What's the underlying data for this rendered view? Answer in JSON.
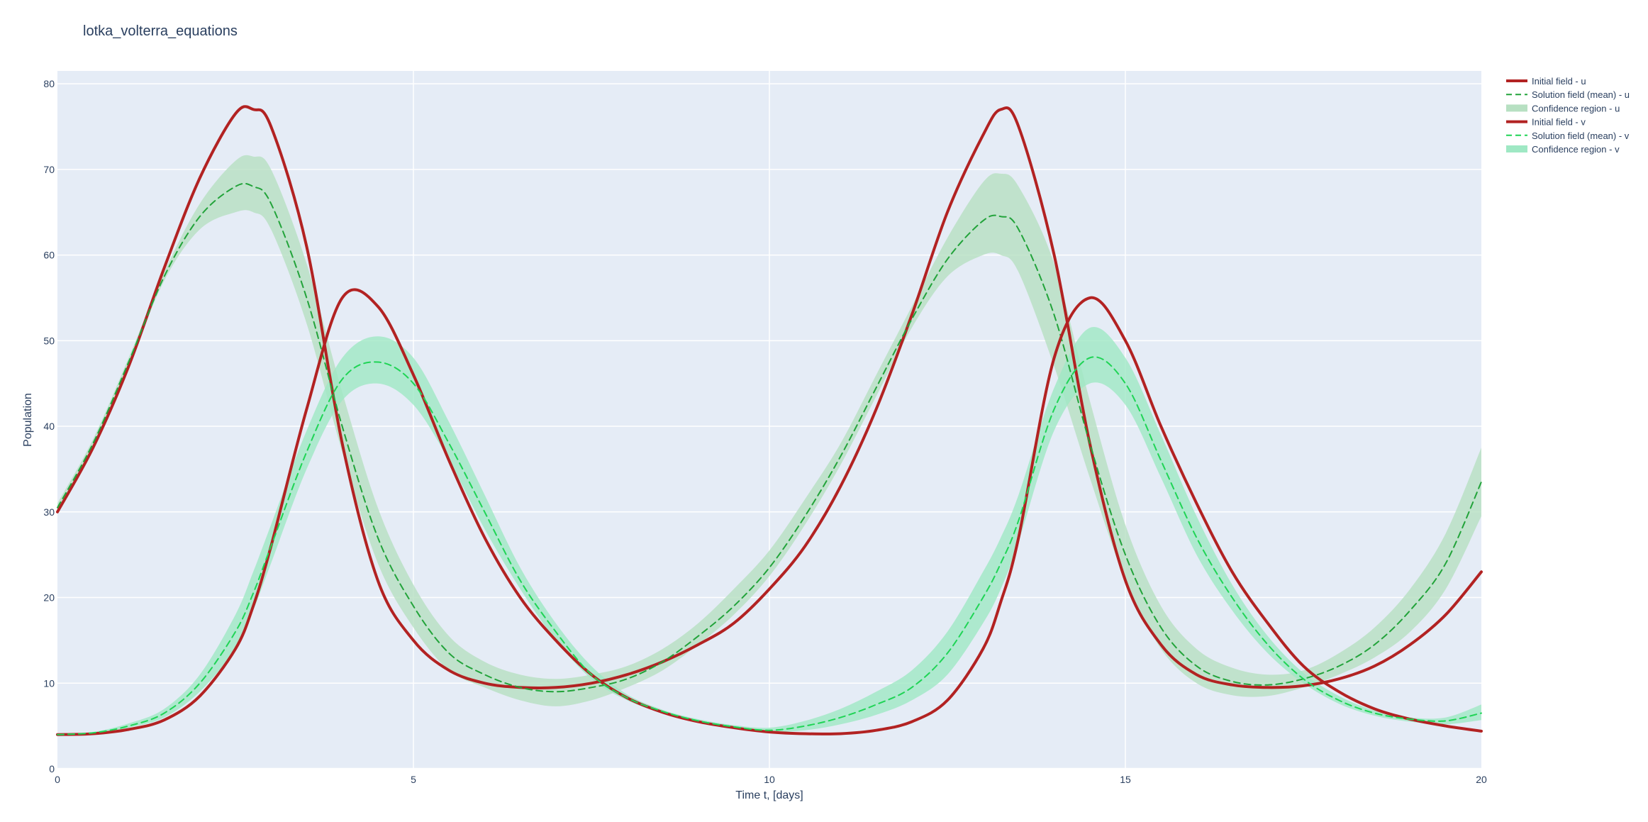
{
  "chart_data": {
    "type": "line",
    "title": "lotka_volterra_equations",
    "xlabel": "Time t, [days]",
    "ylabel": "Population",
    "xlim": [
      0,
      20
    ],
    "ylim": [
      0,
      81.5
    ],
    "grid": true,
    "legend_position": "top-right, outside plot",
    "x_ticks": [
      0,
      5,
      10,
      15,
      20
    ],
    "y_ticks": [
      0,
      10,
      20,
      30,
      40,
      50,
      60,
      70,
      80
    ],
    "x": [
      0,
      0.5,
      1,
      1.5,
      2,
      2.5,
      2.75,
      3,
      3.5,
      4,
      4.5,
      5,
      5.5,
      6,
      6.5,
      7,
      7.5,
      8,
      8.5,
      9,
      9.5,
      10,
      10.5,
      11,
      11.5,
      12,
      12.5,
      13,
      13.25,
      13.5,
      14,
      14.5,
      15,
      15.5,
      16,
      16.5,
      17,
      17.5,
      18,
      18.5,
      19,
      19.5,
      20
    ],
    "series": [
      {
        "name": "Initial field - u",
        "color": "#B22222",
        "dash": "solid",
        "values": [
          30,
          37.5,
          47,
          58.5,
          69,
          76.5,
          77,
          75,
          61,
          38,
          22,
          15,
          11.5,
          10,
          9.5,
          9.5,
          10,
          11,
          12.5,
          14.5,
          17,
          21,
          26,
          33,
          42,
          53,
          65,
          74,
          77,
          75,
          60,
          38,
          22,
          14.5,
          11,
          9.8,
          9.5,
          9.7,
          10.5,
          12,
          14.5,
          18,
          23
        ]
      },
      {
        "name": "Solution field (mean) - u",
        "color": "#22A33A",
        "dash": "dash",
        "values": [
          30.5,
          38,
          47.5,
          57.5,
          64.5,
          68,
          68,
          66,
          55,
          40,
          27,
          19,
          13.5,
          11,
          9.5,
          9,
          9.5,
          10.5,
          12.5,
          15.5,
          19,
          23.5,
          29.5,
          36.5,
          44.5,
          52.5,
          59.5,
          64,
          64.5,
          63,
          53,
          38,
          25,
          16.5,
          12,
          10.2,
          9.8,
          10.5,
          12,
          14.5,
          18.5,
          24,
          33.5
        ]
      },
      {
        "name": "Confidence region - u",
        "color": "#B7E0C2",
        "type": "band",
        "lower": [
          30,
          37.5,
          47,
          57,
          63,
          65,
          65,
          63,
          52,
          37,
          24,
          16.5,
          11.5,
          9.5,
          8,
          7.3,
          8,
          9.5,
          11.5,
          14.5,
          18,
          22.5,
          28.5,
          35.5,
          43.5,
          51.5,
          57.5,
          60,
          60,
          58,
          47,
          34,
          22,
          14,
          10,
          8.6,
          8.5,
          9.5,
          11,
          13,
          16,
          21,
          29.5
        ],
        "upper": [
          31,
          38.5,
          48,
          58,
          66,
          71,
          71.5,
          70,
          59,
          44,
          30.5,
          21.5,
          15.5,
          12.5,
          11,
          10.5,
          11,
          12,
          14,
          17,
          21,
          25.5,
          31.5,
          38,
          46,
          54,
          62,
          68.5,
          69.5,
          68,
          59,
          43,
          28.5,
          19,
          14,
          11.8,
          11,
          11.5,
          13.5,
          16.5,
          21,
          27.5,
          37.5
        ]
      },
      {
        "name": "Initial field - v",
        "color": "#B22222",
        "dash": "solid",
        "values": [
          4,
          4.1,
          4.6,
          5.7,
          8.5,
          14,
          19,
          26,
          42,
          55,
          54,
          46,
          36,
          27,
          20,
          15,
          11,
          8.3,
          6.6,
          5.5,
          4.8,
          4.3,
          4.1,
          4.1,
          4.5,
          5.5,
          8,
          14,
          19.5,
          27,
          48,
          55,
          50,
          40,
          31,
          23,
          17,
          12,
          9,
          7,
          5.8,
          5,
          4.4
        ]
      },
      {
        "name": "Solution field (mean) - v",
        "color": "#1FD455",
        "dash": "dash",
        "values": [
          4,
          4.2,
          5,
          6.5,
          10,
          16,
          20.5,
          26,
          37,
          45.5,
          47.5,
          45,
          38,
          30,
          22,
          16,
          11,
          8.3,
          6.7,
          5.6,
          4.9,
          4.5,
          5,
          6,
          7.5,
          9.5,
          13.5,
          20,
          24,
          29,
          42,
          48,
          45,
          36,
          27,
          20,
          14.5,
          10.5,
          8,
          6.5,
          5.8,
          5.6,
          6.5
        ]
      },
      {
        "name": "Confidence region - v",
        "color": "#9FE8C4",
        "type": "band",
        "lower": [
          4,
          4.1,
          4.8,
          6,
          9,
          14,
          18.5,
          24,
          35,
          43,
          45,
          42.5,
          36,
          28,
          21,
          15,
          10.5,
          8,
          6.5,
          5.4,
          4.7,
          4.3,
          4.5,
          5.2,
          6.3,
          8,
          11,
          17,
          21,
          26.5,
          39.5,
          45,
          42.5,
          34,
          25,
          18.5,
          13.5,
          10,
          7.6,
          6.2,
          5.5,
          5.2,
          5.7
        ],
        "upper": [
          4,
          4.3,
          5.3,
          7,
          11,
          18,
          23,
          28.5,
          39.5,
          48,
          50.5,
          48,
          40.5,
          32,
          23.5,
          17,
          12,
          8.7,
          6.9,
          5.8,
          5.1,
          4.8,
          5.6,
          7,
          9,
          11.5,
          16,
          23,
          27,
          32,
          44.5,
          51.5,
          48,
          39,
          29.5,
          21.5,
          15.5,
          11.2,
          8.5,
          6.8,
          6,
          6,
          7.5
        ]
      }
    ]
  }
}
